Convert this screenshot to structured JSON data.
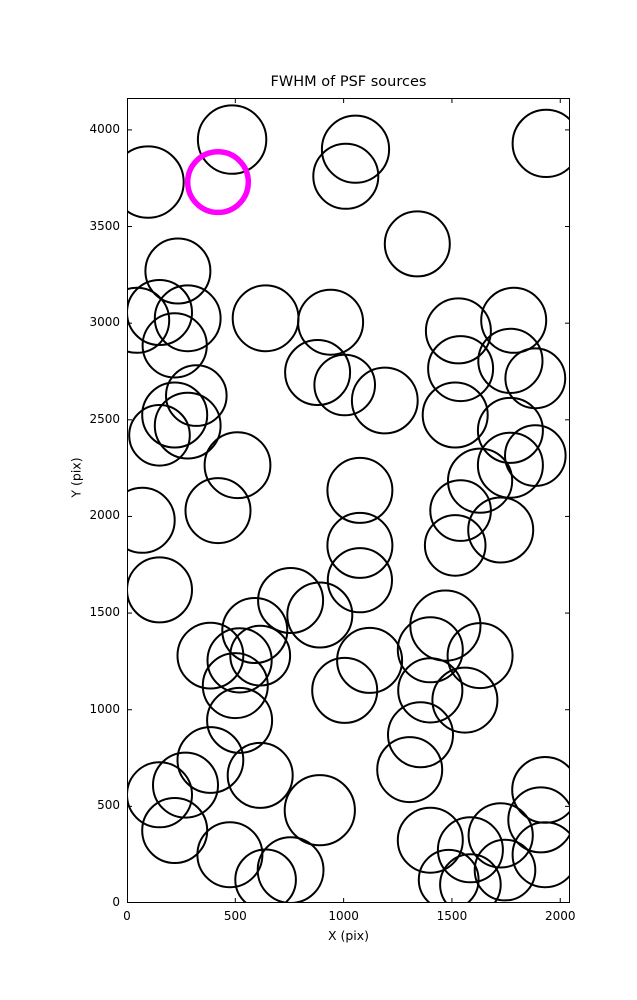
{
  "figure": {
    "title": "FWHM of PSF sources",
    "xlabel": "X (pix)",
    "ylabel": "Y (pix)"
  },
  "chart_data": {
    "type": "scatter",
    "title": "FWHM of PSF sources",
    "xlabel": "X (pix)",
    "ylabel": "Y (pix)",
    "xlim": [
      0,
      2045
    ],
    "ylim": [
      0,
      4165
    ],
    "xticks": [
      0,
      500,
      1000,
      1500,
      2000
    ],
    "yticks": [
      0,
      500,
      1000,
      1500,
      2000,
      2500,
      3000,
      3500,
      4000
    ],
    "grid": false,
    "legend": "none",
    "marker": "open circle, radius proportional to FWHM (data units along x)",
    "colors": {
      "default": "#000000",
      "highlight": "#ff00ff"
    },
    "points": [
      {
        "x": 97,
        "y": 3730,
        "r": 165
      },
      {
        "x": 485,
        "y": 3950,
        "r": 158
      },
      {
        "x": 1055,
        "y": 3900,
        "r": 155
      },
      {
        "x": 1010,
        "y": 3760,
        "r": 150
      },
      {
        "x": 1935,
        "y": 3930,
        "r": 155
      },
      {
        "x": 1340,
        "y": 3410,
        "r": 150
      },
      {
        "x": 235,
        "y": 3270,
        "r": 150
      },
      {
        "x": 150,
        "y": 3055,
        "r": 150
      },
      {
        "x": 280,
        "y": 3025,
        "r": 152
      },
      {
        "x": 45,
        "y": 3015,
        "r": 150
      },
      {
        "x": 640,
        "y": 3025,
        "r": 152
      },
      {
        "x": 940,
        "y": 3005,
        "r": 150
      },
      {
        "x": 1530,
        "y": 2960,
        "r": 150
      },
      {
        "x": 1785,
        "y": 3015,
        "r": 150
      },
      {
        "x": 220,
        "y": 2885,
        "r": 148
      },
      {
        "x": 880,
        "y": 2745,
        "r": 150
      },
      {
        "x": 1005,
        "y": 2680,
        "r": 140
      },
      {
        "x": 1540,
        "y": 2765,
        "r": 150
      },
      {
        "x": 1770,
        "y": 2805,
        "r": 148
      },
      {
        "x": 1885,
        "y": 2715,
        "r": 138
      },
      {
        "x": 320,
        "y": 2625,
        "r": 140
      },
      {
        "x": 1190,
        "y": 2600,
        "r": 152
      },
      {
        "x": 220,
        "y": 2525,
        "r": 150
      },
      {
        "x": 280,
        "y": 2470,
        "r": 152
      },
      {
        "x": 150,
        "y": 2420,
        "r": 140
      },
      {
        "x": 1515,
        "y": 2525,
        "r": 150
      },
      {
        "x": 1770,
        "y": 2445,
        "r": 150
      },
      {
        "x": 1885,
        "y": 2315,
        "r": 140
      },
      {
        "x": 1770,
        "y": 2265,
        "r": 150
      },
      {
        "x": 1630,
        "y": 2185,
        "r": 148
      },
      {
        "x": 510,
        "y": 2265,
        "r": 152
      },
      {
        "x": 1075,
        "y": 2135,
        "r": 150
      },
      {
        "x": 70,
        "y": 1980,
        "r": 150
      },
      {
        "x": 420,
        "y": 2030,
        "r": 150
      },
      {
        "x": 1075,
        "y": 1850,
        "r": 150
      },
      {
        "x": 1540,
        "y": 2030,
        "r": 140
      },
      {
        "x": 1725,
        "y": 1930,
        "r": 150
      },
      {
        "x": 1515,
        "y": 1850,
        "r": 140
      },
      {
        "x": 150,
        "y": 1620,
        "r": 150
      },
      {
        "x": 1075,
        "y": 1670,
        "r": 148
      },
      {
        "x": 755,
        "y": 1565,
        "r": 150
      },
      {
        "x": 890,
        "y": 1490,
        "r": 150
      },
      {
        "x": 590,
        "y": 1410,
        "r": 150
      },
      {
        "x": 1470,
        "y": 1435,
        "r": 162
      },
      {
        "x": 1400,
        "y": 1310,
        "r": 150
      },
      {
        "x": 385,
        "y": 1280,
        "r": 152
      },
      {
        "x": 520,
        "y": 1255,
        "r": 148
      },
      {
        "x": 615,
        "y": 1280,
        "r": 138
      },
      {
        "x": 500,
        "y": 1125,
        "r": 150
      },
      {
        "x": 1120,
        "y": 1255,
        "r": 150
      },
      {
        "x": 1630,
        "y": 1280,
        "r": 150
      },
      {
        "x": 1005,
        "y": 1100,
        "r": 150
      },
      {
        "x": 1400,
        "y": 1100,
        "r": 148
      },
      {
        "x": 1560,
        "y": 1050,
        "r": 150
      },
      {
        "x": 520,
        "y": 945,
        "r": 150
      },
      {
        "x": 1355,
        "y": 870,
        "r": 150
      },
      {
        "x": 385,
        "y": 740,
        "r": 152
      },
      {
        "x": 270,
        "y": 610,
        "r": 150
      },
      {
        "x": 150,
        "y": 560,
        "r": 150
      },
      {
        "x": 615,
        "y": 660,
        "r": 150
      },
      {
        "x": 1305,
        "y": 690,
        "r": 150
      },
      {
        "x": 1930,
        "y": 585,
        "r": 152
      },
      {
        "x": 890,
        "y": 480,
        "r": 162
      },
      {
        "x": 220,
        "y": 375,
        "r": 150
      },
      {
        "x": 475,
        "y": 250,
        "r": 150
      },
      {
        "x": 755,
        "y": 170,
        "r": 152
      },
      {
        "x": 640,
        "y": 120,
        "r": 140
      },
      {
        "x": 1400,
        "y": 325,
        "r": 150
      },
      {
        "x": 1585,
        "y": 275,
        "r": 150
      },
      {
        "x": 1725,
        "y": 350,
        "r": 148
      },
      {
        "x": 1910,
        "y": 430,
        "r": 150
      },
      {
        "x": 1930,
        "y": 250,
        "r": 150
      },
      {
        "x": 1745,
        "y": 170,
        "r": 140
      },
      {
        "x": 1585,
        "y": 95,
        "r": 140
      },
      {
        "x": 1485,
        "y": 120,
        "r": 138
      },
      {
        "x": 420,
        "y": 3730,
        "r": 140,
        "highlight": true
      }
    ]
  }
}
